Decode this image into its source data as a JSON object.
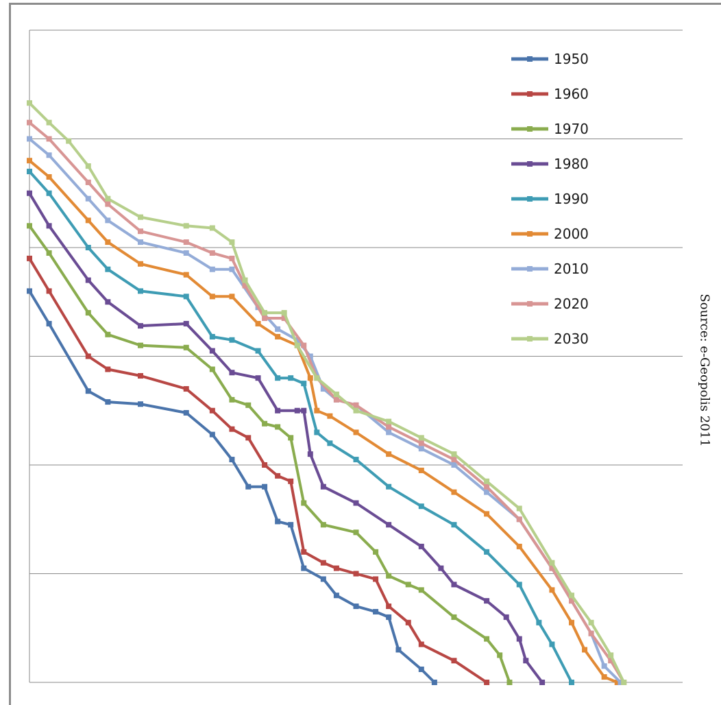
{
  "chart_data": {
    "type": "line",
    "title": "",
    "xlabel": "",
    "ylabel": "",
    "grid": true,
    "legend_position": "top-right",
    "x_range": [
      0,
      1
    ],
    "y_range": [
      0,
      6
    ],
    "series": [
      {
        "name": "1950",
        "color": "#4a74ab",
        "points": [
          [
            0.0,
            3.6
          ],
          [
            0.03,
            3.3
          ],
          [
            0.09,
            2.68
          ],
          [
            0.12,
            2.58
          ],
          [
            0.17,
            2.56
          ],
          [
            0.24,
            2.48
          ],
          [
            0.28,
            2.28
          ],
          [
            0.31,
            2.05
          ],
          [
            0.335,
            1.8
          ],
          [
            0.36,
            1.8
          ],
          [
            0.38,
            1.48
          ],
          [
            0.4,
            1.45
          ],
          [
            0.42,
            1.05
          ],
          [
            0.45,
            0.95
          ],
          [
            0.47,
            0.8
          ],
          [
            0.5,
            0.7
          ],
          [
            0.53,
            0.65
          ],
          [
            0.55,
            0.6
          ],
          [
            0.565,
            0.3
          ],
          [
            0.6,
            0.12
          ],
          [
            0.62,
            0.0
          ]
        ]
      },
      {
        "name": "1960",
        "color": "#b84744",
        "points": [
          [
            0.0,
            3.9
          ],
          [
            0.03,
            3.6
          ],
          [
            0.09,
            3.0
          ],
          [
            0.12,
            2.88
          ],
          [
            0.17,
            2.82
          ],
          [
            0.24,
            2.7
          ],
          [
            0.28,
            2.5
          ],
          [
            0.31,
            2.33
          ],
          [
            0.335,
            2.25
          ],
          [
            0.36,
            2.0
          ],
          [
            0.38,
            1.9
          ],
          [
            0.4,
            1.85
          ],
          [
            0.42,
            1.2
          ],
          [
            0.45,
            1.1
          ],
          [
            0.47,
            1.05
          ],
          [
            0.5,
            1.0
          ],
          [
            0.53,
            0.95
          ],
          [
            0.55,
            0.7
          ],
          [
            0.58,
            0.55
          ],
          [
            0.6,
            0.35
          ],
          [
            0.65,
            0.2
          ],
          [
            0.7,
            0.0
          ]
        ]
      },
      {
        "name": "1970",
        "color": "#8aac4e",
        "points": [
          [
            0.0,
            4.2
          ],
          [
            0.03,
            3.95
          ],
          [
            0.09,
            3.4
          ],
          [
            0.12,
            3.2
          ],
          [
            0.17,
            3.1
          ],
          [
            0.24,
            3.08
          ],
          [
            0.28,
            2.88
          ],
          [
            0.31,
            2.6
          ],
          [
            0.335,
            2.55
          ],
          [
            0.36,
            2.38
          ],
          [
            0.38,
            2.35
          ],
          [
            0.4,
            2.25
          ],
          [
            0.42,
            1.65
          ],
          [
            0.45,
            1.45
          ],
          [
            0.5,
            1.38
          ],
          [
            0.53,
            1.2
          ],
          [
            0.55,
            0.98
          ],
          [
            0.58,
            0.9
          ],
          [
            0.6,
            0.85
          ],
          [
            0.65,
            0.6
          ],
          [
            0.7,
            0.4
          ],
          [
            0.72,
            0.25
          ],
          [
            0.735,
            0.0
          ]
        ]
      },
      {
        "name": "1980",
        "color": "#6a4c94",
        "points": [
          [
            0.0,
            4.5
          ],
          [
            0.03,
            4.2
          ],
          [
            0.09,
            3.7
          ],
          [
            0.12,
            3.5
          ],
          [
            0.17,
            3.28
          ],
          [
            0.24,
            3.3
          ],
          [
            0.28,
            3.05
          ],
          [
            0.31,
            2.85
          ],
          [
            0.35,
            2.8
          ],
          [
            0.38,
            2.5
          ],
          [
            0.41,
            2.5
          ],
          [
            0.42,
            2.5
          ],
          [
            0.43,
            2.1
          ],
          [
            0.45,
            1.8
          ],
          [
            0.5,
            1.65
          ],
          [
            0.55,
            1.45
          ],
          [
            0.6,
            1.25
          ],
          [
            0.63,
            1.05
          ],
          [
            0.65,
            0.9
          ],
          [
            0.7,
            0.75
          ],
          [
            0.73,
            0.6
          ],
          [
            0.75,
            0.4
          ],
          [
            0.76,
            0.2
          ],
          [
            0.785,
            0.0
          ]
        ]
      },
      {
        "name": "1990",
        "color": "#3e9cb4",
        "points": [
          [
            0.0,
            4.7
          ],
          [
            0.03,
            4.5
          ],
          [
            0.09,
            4.0
          ],
          [
            0.12,
            3.8
          ],
          [
            0.17,
            3.6
          ],
          [
            0.24,
            3.55
          ],
          [
            0.28,
            3.18
          ],
          [
            0.31,
            3.15
          ],
          [
            0.35,
            3.05
          ],
          [
            0.38,
            2.8
          ],
          [
            0.4,
            2.8
          ],
          [
            0.42,
            2.75
          ],
          [
            0.44,
            2.3
          ],
          [
            0.46,
            2.2
          ],
          [
            0.5,
            2.05
          ],
          [
            0.55,
            1.8
          ],
          [
            0.6,
            1.62
          ],
          [
            0.65,
            1.45
          ],
          [
            0.7,
            1.2
          ],
          [
            0.75,
            0.9
          ],
          [
            0.78,
            0.55
          ],
          [
            0.8,
            0.35
          ],
          [
            0.83,
            0.0
          ]
        ]
      },
      {
        "name": "2000",
        "color": "#e28a35",
        "points": [
          [
            0.0,
            4.8
          ],
          [
            0.03,
            4.65
          ],
          [
            0.09,
            4.25
          ],
          [
            0.12,
            4.05
          ],
          [
            0.17,
            3.85
          ],
          [
            0.24,
            3.75
          ],
          [
            0.28,
            3.55
          ],
          [
            0.31,
            3.55
          ],
          [
            0.35,
            3.3
          ],
          [
            0.38,
            3.18
          ],
          [
            0.41,
            3.1
          ],
          [
            0.43,
            2.8
          ],
          [
            0.44,
            2.5
          ],
          [
            0.46,
            2.45
          ],
          [
            0.5,
            2.3
          ],
          [
            0.55,
            2.1
          ],
          [
            0.6,
            1.95
          ],
          [
            0.65,
            1.75
          ],
          [
            0.7,
            1.55
          ],
          [
            0.75,
            1.25
          ],
          [
            0.8,
            0.85
          ],
          [
            0.83,
            0.55
          ],
          [
            0.85,
            0.3
          ],
          [
            0.88,
            0.05
          ],
          [
            0.9,
            0.0
          ]
        ]
      },
      {
        "name": "2010",
        "color": "#94acd8",
        "points": [
          [
            0.0,
            5.0
          ],
          [
            0.03,
            4.85
          ],
          [
            0.09,
            4.45
          ],
          [
            0.12,
            4.25
          ],
          [
            0.17,
            4.05
          ],
          [
            0.24,
            3.95
          ],
          [
            0.28,
            3.8
          ],
          [
            0.31,
            3.8
          ],
          [
            0.35,
            3.45
          ],
          [
            0.38,
            3.25
          ],
          [
            0.41,
            3.15
          ],
          [
            0.43,
            3.0
          ],
          [
            0.45,
            2.7
          ],
          [
            0.47,
            2.6
          ],
          [
            0.5,
            2.55
          ],
          [
            0.55,
            2.3
          ],
          [
            0.6,
            2.15
          ],
          [
            0.65,
            2.0
          ],
          [
            0.7,
            1.75
          ],
          [
            0.75,
            1.5
          ],
          [
            0.8,
            1.05
          ],
          [
            0.83,
            0.75
          ],
          [
            0.86,
            0.45
          ],
          [
            0.88,
            0.15
          ],
          [
            0.905,
            0.0
          ]
        ]
      },
      {
        "name": "2020",
        "color": "#d89594",
        "points": [
          [
            0.0,
            5.15
          ],
          [
            0.03,
            5.0
          ],
          [
            0.09,
            4.6
          ],
          [
            0.12,
            4.4
          ],
          [
            0.17,
            4.15
          ],
          [
            0.24,
            4.05
          ],
          [
            0.28,
            3.95
          ],
          [
            0.31,
            3.9
          ],
          [
            0.33,
            3.65
          ],
          [
            0.36,
            3.35
          ],
          [
            0.39,
            3.35
          ],
          [
            0.42,
            3.1
          ],
          [
            0.44,
            2.8
          ],
          [
            0.47,
            2.6
          ],
          [
            0.5,
            2.55
          ],
          [
            0.55,
            2.35
          ],
          [
            0.6,
            2.2
          ],
          [
            0.65,
            2.05
          ],
          [
            0.7,
            1.8
          ],
          [
            0.75,
            1.5
          ],
          [
            0.8,
            1.05
          ],
          [
            0.83,
            0.75
          ],
          [
            0.86,
            0.45
          ],
          [
            0.89,
            0.2
          ],
          [
            0.91,
            0.0
          ]
        ]
      },
      {
        "name": "2030",
        "color": "#b6cf8b",
        "points": [
          [
            0.0,
            5.33
          ],
          [
            0.03,
            5.15
          ],
          [
            0.06,
            4.98
          ],
          [
            0.09,
            4.75
          ],
          [
            0.12,
            4.45
          ],
          [
            0.17,
            4.28
          ],
          [
            0.24,
            4.2
          ],
          [
            0.28,
            4.18
          ],
          [
            0.31,
            4.05
          ],
          [
            0.33,
            3.7
          ],
          [
            0.36,
            3.4
          ],
          [
            0.39,
            3.4
          ],
          [
            0.41,
            3.1
          ],
          [
            0.44,
            2.8
          ],
          [
            0.47,
            2.65
          ],
          [
            0.5,
            2.5
          ],
          [
            0.55,
            2.4
          ],
          [
            0.6,
            2.25
          ],
          [
            0.65,
            2.1
          ],
          [
            0.7,
            1.85
          ],
          [
            0.75,
            1.6
          ],
          [
            0.8,
            1.1
          ],
          [
            0.83,
            0.8
          ],
          [
            0.86,
            0.55
          ],
          [
            0.89,
            0.25
          ],
          [
            0.91,
            0.0
          ]
        ]
      }
    ]
  },
  "source": "Source: e-Geopolis 2011"
}
